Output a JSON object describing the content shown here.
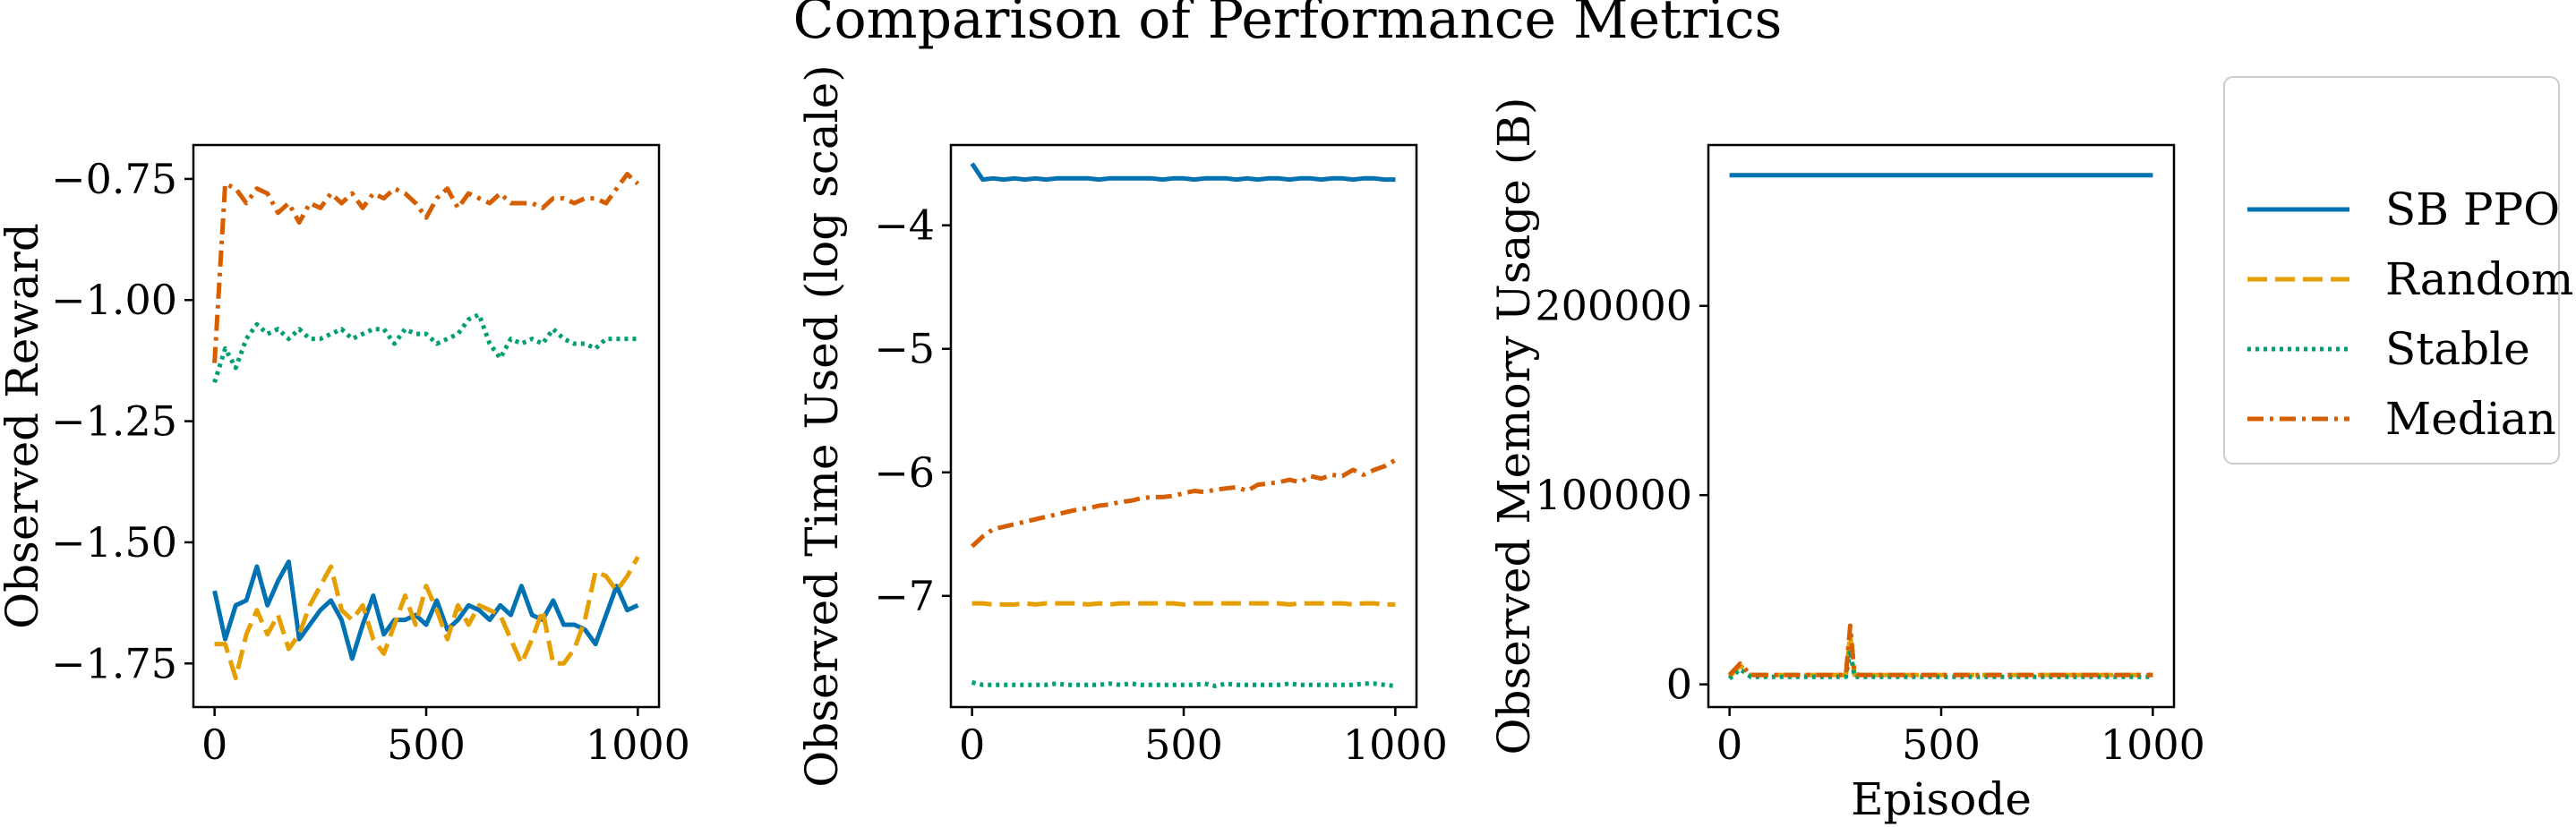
{
  "title": "Comparison of Performance Metrics",
  "colors": {
    "SB PPO": "#0072b2",
    "Random": "#e69f00",
    "Stable": "#009e73",
    "Median": "#d55e00"
  },
  "legend": {
    "placement": "right",
    "entries": [
      "SB PPO",
      "Random",
      "Stable",
      "Median"
    ]
  },
  "chart_data": [
    {
      "type": "line",
      "ylabel": "Observed Reward",
      "xlabel": "",
      "xlim": [
        -50,
        1050
      ],
      "ylim": [
        -1.84,
        -0.68
      ],
      "xticks": [
        0,
        500,
        1000
      ],
      "xtick_labels": [
        "0",
        "500",
        "1000"
      ],
      "yticks": [
        -1.75,
        -1.5,
        -1.25,
        -1.0,
        -0.75
      ],
      "ytick_labels": [
        "−1.75",
        "−1.50",
        "−1.25",
        "−1.00",
        "−0.75"
      ],
      "x": [
        0,
        25,
        50,
        75,
        100,
        125,
        150,
        175,
        200,
        225,
        250,
        275,
        300,
        325,
        350,
        375,
        400,
        425,
        450,
        475,
        500,
        525,
        550,
        575,
        600,
        625,
        650,
        675,
        700,
        725,
        750,
        775,
        800,
        825,
        850,
        875,
        900,
        925,
        950,
        975,
        1000
      ],
      "series": [
        {
          "name": "SB PPO",
          "style": "solid",
          "values": [
            -1.6,
            -1.7,
            -1.63,
            -1.62,
            -1.55,
            -1.63,
            -1.58,
            -1.54,
            -1.7,
            -1.67,
            -1.64,
            -1.62,
            -1.66,
            -1.74,
            -1.67,
            -1.61,
            -1.69,
            -1.66,
            -1.66,
            -1.65,
            -1.67,
            -1.62,
            -1.68,
            -1.66,
            -1.63,
            -1.64,
            -1.66,
            -1.63,
            -1.65,
            -1.59,
            -1.65,
            -1.66,
            -1.62,
            -1.67,
            -1.67,
            -1.68,
            -1.71,
            -1.65,
            -1.59,
            -1.64,
            -1.63
          ]
        },
        {
          "name": "Random",
          "style": "dashed",
          "values": [
            -1.71,
            -1.71,
            -1.78,
            -1.69,
            -1.64,
            -1.69,
            -1.65,
            -1.72,
            -1.69,
            -1.63,
            -1.59,
            -1.55,
            -1.64,
            -1.66,
            -1.63,
            -1.7,
            -1.73,
            -1.67,
            -1.61,
            -1.67,
            -1.59,
            -1.64,
            -1.7,
            -1.63,
            -1.67,
            -1.63,
            -1.64,
            -1.65,
            -1.7,
            -1.75,
            -1.7,
            -1.64,
            -1.75,
            -1.75,
            -1.72,
            -1.66,
            -1.56,
            -1.57,
            -1.6,
            -1.57,
            -1.53
          ]
        },
        {
          "name": "Stable",
          "style": "dotted",
          "values": [
            -1.17,
            -1.1,
            -1.14,
            -1.08,
            -1.05,
            -1.07,
            -1.06,
            -1.08,
            -1.06,
            -1.08,
            -1.08,
            -1.07,
            -1.06,
            -1.08,
            -1.07,
            -1.06,
            -1.06,
            -1.09,
            -1.06,
            -1.07,
            -1.07,
            -1.09,
            -1.08,
            -1.07,
            -1.04,
            -1.03,
            -1.09,
            -1.12,
            -1.08,
            -1.09,
            -1.08,
            -1.09,
            -1.06,
            -1.08,
            -1.09,
            -1.09,
            -1.1,
            -1.08,
            -1.08,
            -1.08,
            -1.08
          ]
        },
        {
          "name": "Median",
          "style": "dashdot",
          "values": [
            -1.13,
            -0.76,
            -0.77,
            -0.8,
            -0.77,
            -0.78,
            -0.82,
            -0.8,
            -0.84,
            -0.8,
            -0.81,
            -0.78,
            -0.8,
            -0.78,
            -0.81,
            -0.78,
            -0.79,
            -0.77,
            -0.78,
            -0.8,
            -0.83,
            -0.79,
            -0.77,
            -0.81,
            -0.78,
            -0.79,
            -0.8,
            -0.78,
            -0.8,
            -0.8,
            -0.8,
            -0.81,
            -0.79,
            -0.79,
            -0.8,
            -0.79,
            -0.79,
            -0.8,
            -0.77,
            -0.74,
            -0.76
          ]
        }
      ]
    },
    {
      "type": "line",
      "ylabel": "Observed Time Used (log scale)",
      "xlabel": "",
      "xlim": [
        -50,
        1050
      ],
      "ylim": [
        -7.9,
        -3.35
      ],
      "xticks": [
        0,
        500,
        1000
      ],
      "xtick_labels": [
        "0",
        "500",
        "1000"
      ],
      "yticks": [
        -7,
        -6,
        -5,
        -4
      ],
      "ytick_labels": [
        "−7",
        "−6",
        "−5",
        "−4"
      ],
      "x": [
        0,
        25,
        50,
        75,
        100,
        125,
        150,
        175,
        200,
        225,
        250,
        275,
        300,
        325,
        350,
        375,
        400,
        425,
        450,
        475,
        500,
        525,
        550,
        575,
        600,
        625,
        650,
        675,
        700,
        725,
        750,
        775,
        800,
        825,
        850,
        875,
        900,
        925,
        950,
        975,
        1000
      ],
      "series": [
        {
          "name": "SB PPO",
          "style": "solid",
          "values": [
            -3.5,
            -3.63,
            -3.62,
            -3.63,
            -3.62,
            -3.63,
            -3.62,
            -3.63,
            -3.62,
            -3.62,
            -3.62,
            -3.62,
            -3.63,
            -3.62,
            -3.62,
            -3.62,
            -3.62,
            -3.62,
            -3.63,
            -3.62,
            -3.62,
            -3.63,
            -3.62,
            -3.62,
            -3.62,
            -3.63,
            -3.62,
            -3.63,
            -3.62,
            -3.62,
            -3.63,
            -3.62,
            -3.62,
            -3.63,
            -3.62,
            -3.62,
            -3.63,
            -3.62,
            -3.62,
            -3.63,
            -3.63
          ]
        },
        {
          "name": "Random",
          "style": "dashed",
          "values": [
            -7.06,
            -7.06,
            -7.07,
            -7.07,
            -7.07,
            -7.06,
            -7.07,
            -7.06,
            -7.06,
            -7.06,
            -7.06,
            -7.07,
            -7.06,
            -7.07,
            -7.06,
            -7.06,
            -7.06,
            -7.06,
            -7.06,
            -7.06,
            -7.07,
            -7.06,
            -7.06,
            -7.06,
            -7.06,
            -7.06,
            -7.06,
            -7.06,
            -7.06,
            -7.06,
            -7.07,
            -7.06,
            -7.06,
            -7.06,
            -7.06,
            -7.06,
            -7.07,
            -7.06,
            -7.06,
            -7.07,
            -7.07
          ]
        },
        {
          "name": "Stable",
          "style": "dotted",
          "values": [
            -7.7,
            -7.72,
            -7.72,
            -7.72,
            -7.72,
            -7.72,
            -7.72,
            -7.72,
            -7.71,
            -7.72,
            -7.72,
            -7.72,
            -7.72,
            -7.71,
            -7.72,
            -7.71,
            -7.72,
            -7.72,
            -7.72,
            -7.72,
            -7.72,
            -7.72,
            -7.71,
            -7.73,
            -7.71,
            -7.72,
            -7.72,
            -7.72,
            -7.72,
            -7.72,
            -7.71,
            -7.72,
            -7.72,
            -7.72,
            -7.72,
            -7.72,
            -7.72,
            -7.71,
            -7.71,
            -7.72,
            -7.73
          ]
        },
        {
          "name": "Median",
          "style": "dashdot",
          "values": [
            -6.6,
            -6.52,
            -6.46,
            -6.44,
            -6.42,
            -6.4,
            -6.38,
            -6.36,
            -6.34,
            -6.32,
            -6.3,
            -6.29,
            -6.27,
            -6.26,
            -6.24,
            -6.23,
            -6.21,
            -6.2,
            -6.2,
            -6.19,
            -6.17,
            -6.15,
            -6.16,
            -6.14,
            -6.13,
            -6.12,
            -6.15,
            -6.1,
            -6.09,
            -6.08,
            -6.06,
            -6.08,
            -6.03,
            -6.05,
            -6.02,
            -6.03,
            -5.98,
            -6.02,
            -5.98,
            -5.95,
            -5.9
          ]
        }
      ]
    },
    {
      "type": "line",
      "ylabel": "Observed Memory Usage (B)",
      "xlabel": "Episode",
      "xlim": [
        -50,
        1050
      ],
      "ylim": [
        -12000,
        285000
      ],
      "xticks": [
        0,
        500,
        1000
      ],
      "xtick_labels": [
        "0",
        "500",
        "1000"
      ],
      "yticks": [
        0,
        100000,
        200000
      ],
      "ytick_labels": [
        "0",
        "100000",
        "200000"
      ],
      "x": [
        0,
        25,
        50,
        75,
        100,
        125,
        150,
        175,
        200,
        225,
        250,
        275,
        285,
        295,
        305,
        325,
        350,
        375,
        400,
        425,
        450,
        475,
        500,
        525,
        550,
        575,
        600,
        625,
        650,
        675,
        700,
        725,
        750,
        775,
        800,
        825,
        850,
        875,
        900,
        925,
        950,
        975,
        1000
      ],
      "series": [
        {
          "name": "SB PPO",
          "style": "solid",
          "values": [
            269000,
            269000,
            269000,
            269000,
            269000,
            269000,
            269000,
            269000,
            269000,
            269000,
            269000,
            269000,
            269000,
            269000,
            269000,
            269000,
            269000,
            269000,
            269000,
            269000,
            269000,
            269000,
            269000,
            269000,
            269000,
            269000,
            269000,
            269000,
            269000,
            269000,
            269000,
            269000,
            269000,
            269000,
            269000,
            269000,
            269000,
            269000,
            269000,
            269000,
            269000,
            269000,
            269000
          ]
        },
        {
          "name": "Random",
          "style": "dashed",
          "values": [
            4000,
            10000,
            5000,
            5000,
            5000,
            5000,
            5000,
            5000,
            5000,
            5000,
            5000,
            5000,
            26000,
            5000,
            5000,
            5000,
            5000,
            5000,
            5000,
            5000,
            5000,
            5000,
            5000,
            5000,
            5000,
            5000,
            5000,
            5000,
            5000,
            5000,
            5000,
            5000,
            5000,
            5000,
            5000,
            5000,
            5000,
            5000,
            5000,
            5000,
            5000,
            5000,
            5000
          ]
        },
        {
          "name": "Stable",
          "style": "dotted",
          "values": [
            3000,
            8000,
            4000,
            4000,
            4000,
            4000,
            4000,
            4000,
            4000,
            4000,
            4000,
            4000,
            18000,
            4000,
            4000,
            4000,
            4000,
            4000,
            4000,
            4000,
            4000,
            4000,
            4000,
            4000,
            4000,
            4000,
            4000,
            4000,
            4000,
            4000,
            4000,
            4000,
            4000,
            4000,
            4000,
            4000,
            4000,
            4000,
            4000,
            4000,
            4000,
            4000,
            4000
          ]
        },
        {
          "name": "Median",
          "style": "dashdot",
          "values": [
            5000,
            11000,
            5000,
            5000,
            5000,
            5000,
            5000,
            5000,
            5000,
            5000,
            5000,
            5000,
            31000,
            6000,
            5000,
            5000,
            5000,
            5000,
            5000,
            5000,
            5000,
            5000,
            5000,
            5000,
            5000,
            5000,
            5000,
            5000,
            5000,
            5000,
            5000,
            5000,
            5000,
            5000,
            5000,
            5000,
            5000,
            5000,
            5000,
            5000,
            5000,
            5000,
            5000
          ]
        }
      ]
    }
  ]
}
